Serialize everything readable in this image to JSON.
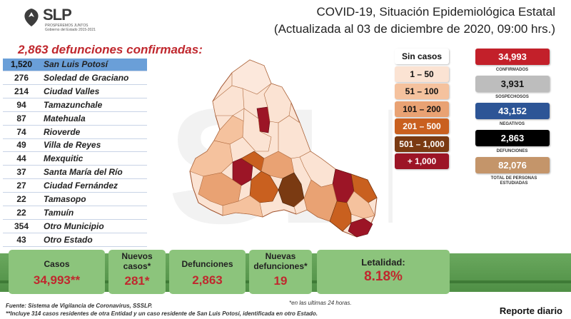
{
  "header": {
    "logo_text": "SLP",
    "logo_tagline": "PROSPEREMOS JUNTOS",
    "logo_sub": "Gobierno del Estado 2015-2021",
    "title_line1": "COVID-19, Situación Epidemiológica Estatal",
    "title_line2": "(Actualizada al 03 de diciembre de 2020, 09:00 hrs.)"
  },
  "deaths_heading": "2,863 defunciones confirmadas:",
  "municipalities": [
    {
      "count": "1,520",
      "name": "San Luis Potosí"
    },
    {
      "count": "276",
      "name": "Soledad de Graciano"
    },
    {
      "count": "214",
      "name": "Ciudad Valles"
    },
    {
      "count": "94",
      "name": "Tamazunchale"
    },
    {
      "count": "87",
      "name": "Matehuala"
    },
    {
      "count": "74",
      "name": "Rioverde"
    },
    {
      "count": "49",
      "name": "Villa de Reyes"
    },
    {
      "count": "44",
      "name": "Mexquitic"
    },
    {
      "count": "37",
      "name": "Santa María del Río"
    },
    {
      "count": "27",
      "name": "Ciudad Fernández"
    },
    {
      "count": "22",
      "name": "Tamasopo"
    },
    {
      "count": "22",
      "name": "Tamuín"
    },
    {
      "count": "354",
      "name": "Otro Municipio"
    },
    {
      "count": "43",
      "name": "Otro Estado"
    }
  ],
  "legend": [
    {
      "label": "Sin casos",
      "bg": "#ffffff",
      "fg": "#111111"
    },
    {
      "label": "1 – 50",
      "bg": "#fbe3d3",
      "fg": "#111111"
    },
    {
      "label": "51 – 100",
      "bg": "#f5c29e",
      "fg": "#111111"
    },
    {
      "label": "101 – 200",
      "bg": "#e9a273",
      "fg": "#111111"
    },
    {
      "label": "201 – 500",
      "bg": "#c9601f",
      "fg": "#ffffff"
    },
    {
      "label": "501 – 1,000",
      "bg": "#7a3a12",
      "fg": "#ffffff"
    },
    {
      "label": "+ 1,000",
      "bg": "#9c1526",
      "fg": "#ffffff"
    }
  ],
  "stats": [
    {
      "value": "34,993",
      "label": "CONFIRMADOS",
      "bg": "#c3202a",
      "fg": "#ffffff"
    },
    {
      "value": "3,931",
      "label": "SOSPECHOSOS",
      "bg": "#bdbdbd",
      "fg": "#111111"
    },
    {
      "value": "43,152",
      "label": "NEGATIVOS",
      "bg": "#2d5596",
      "fg": "#ffffff"
    },
    {
      "value": "2,863",
      "label": "DEFUNCIONES",
      "bg": "#000000",
      "fg": "#ffffff"
    },
    {
      "value": "82,076",
      "label": "TOTAL DE PERSONAS ESTUDIADAS",
      "bg": "#c4956a",
      "fg": "#ffffff"
    }
  ],
  "summary": {
    "cases_label": "Casos",
    "cases_value": "34,993**",
    "new_cases_label": "Nuevos casos*",
    "new_cases_value": "281*",
    "deaths_label": "Defunciones",
    "deaths_value": "2,863",
    "new_deaths_label": "Nuevas defunciones*",
    "new_deaths_value": "19",
    "lethality_label": "Letalidad:",
    "lethality_value": "8.18%"
  },
  "notes": {
    "last24": "*en las ultimas 24 horas.",
    "source": "Fuente: Sistema de Vigilancia de Coronavirus, SSSLP.",
    "footnote": "**Incluye 314 casos residentes de otra Entidad y un caso residente de San Luis Potosí, identificada en otro Estado.",
    "report": "Reporte diario"
  },
  "colors": {
    "accent_red": "#c0282e",
    "band_green": "#5f9e54",
    "card_green": "#8cc47c",
    "value_red": "#c0282e"
  }
}
